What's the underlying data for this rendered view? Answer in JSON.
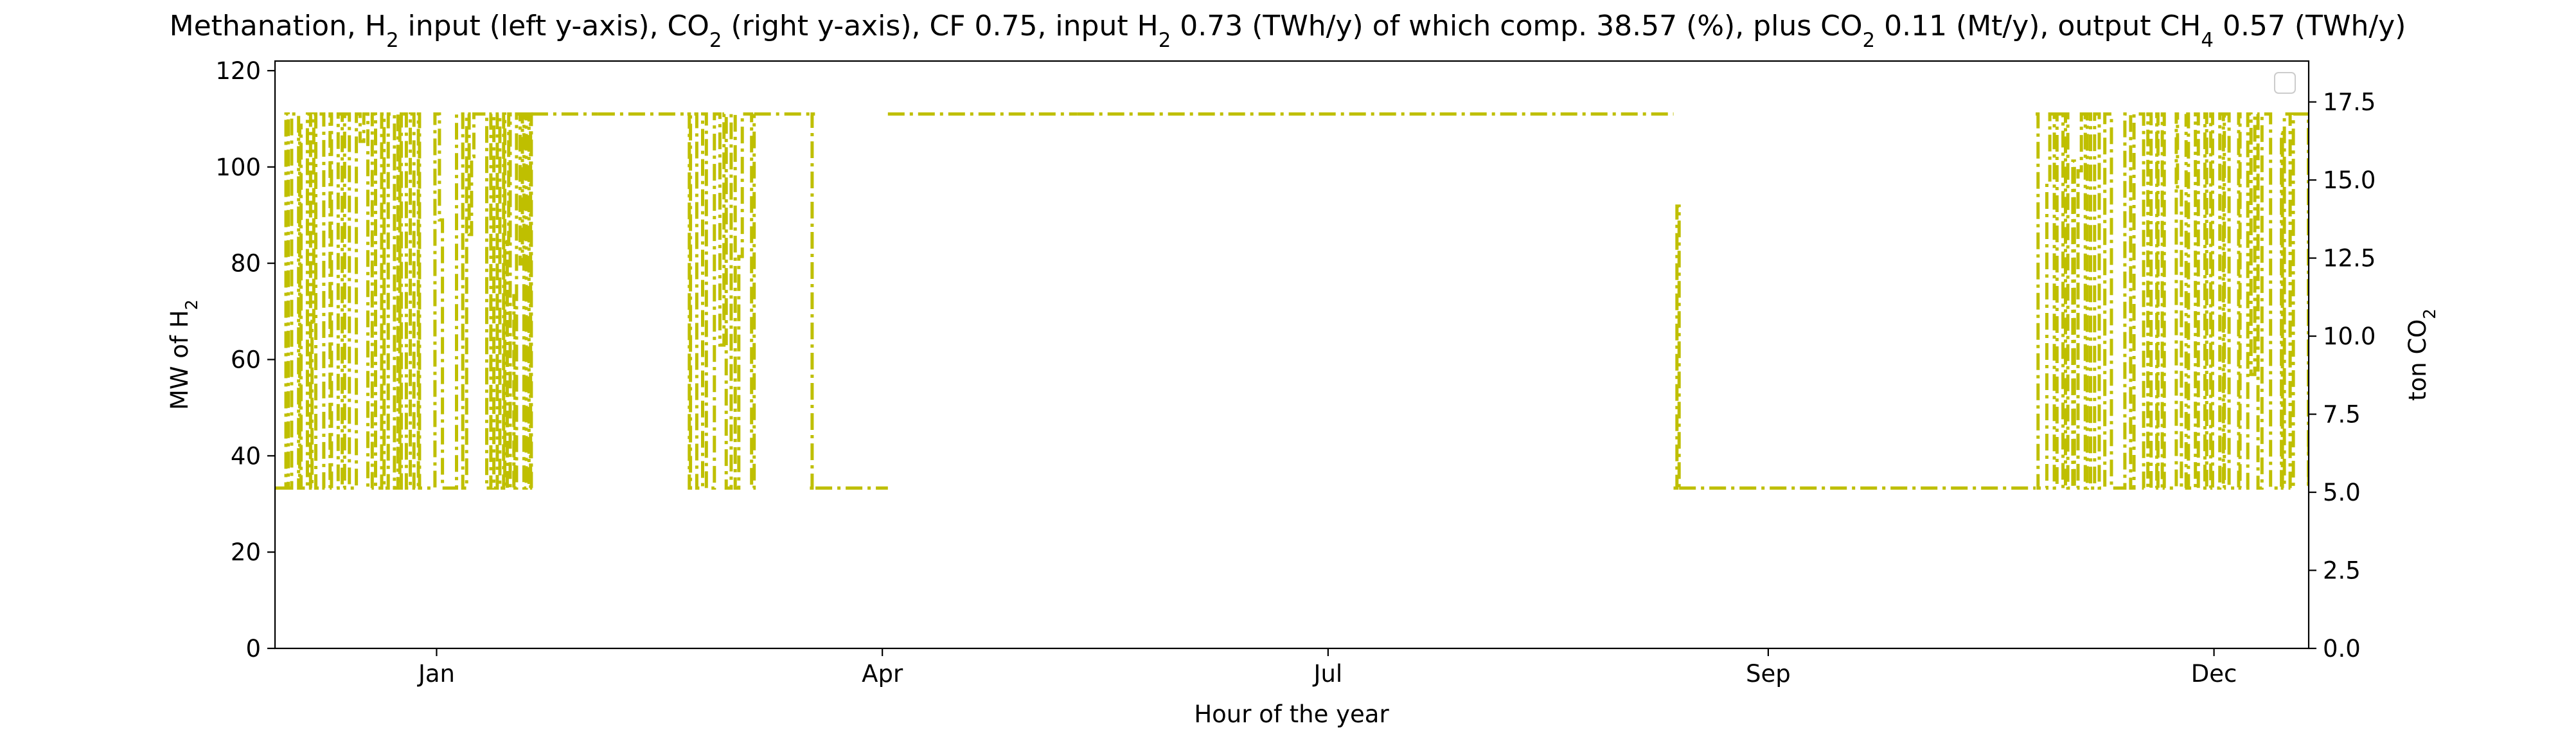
{
  "chart_data": {
    "type": "line",
    "title": {
      "parts": [
        {
          "t": "Methanation, H"
        },
        {
          "t": "2",
          "sub": true
        },
        {
          "t": " input (left y-axis), CO"
        },
        {
          "t": "2",
          "sub": true
        },
        {
          "t": " (right y-axis), CF 0.75, input H"
        },
        {
          "t": "2",
          "sub": true
        },
        {
          "t": " 0.73 (TWh/y) of which comp. 38.57 (%), plus CO"
        },
        {
          "t": "2",
          "sub": true
        },
        {
          "t": " 0.11 (Mt/y), output CH"
        },
        {
          "t": "4",
          "sub": true
        },
        {
          "t": " 0.57 (TWh/y)"
        }
      ]
    },
    "xlabel": "Hour of the year",
    "ylabel_left": {
      "parts": [
        {
          "t": "MW of H"
        },
        {
          "t": "2",
          "sub": true
        }
      ]
    },
    "ylabel_right": {
      "parts": [
        {
          "t": "ton CO"
        },
        {
          "t": "2",
          "sub": true
        }
      ]
    },
    "x_range_days": [
      -12,
      353
    ],
    "x_ticks": [
      {
        "label": "Jan",
        "day": 17
      },
      {
        "label": "Apr",
        "day": 97
      },
      {
        "label": "Jul",
        "day": 177
      },
      {
        "label": "Sep",
        "day": 256
      },
      {
        "label": "Dec",
        "day": 336
      }
    ],
    "ylim_left": [
      0,
      122
    ],
    "yticks_left": [
      0,
      20,
      40,
      60,
      80,
      100,
      120
    ],
    "ylim_right": [
      0,
      18.81
    ],
    "yticks_right": [
      "0.0",
      "2.5",
      "5.0",
      "7.5",
      "10.0",
      "12.5",
      "15.0",
      "17.5"
    ],
    "grid": false,
    "legend": {
      "placement": "top-right",
      "entries": []
    },
    "series": [
      {
        "axis": "left",
        "color": "#bfbf00",
        "linestyle": "dashdot",
        "h2_min_mw": 33.3,
        "h2_max_mw": 111,
        "segments": [
          {
            "from": -12,
            "to": -4,
            "mode": "fluct"
          },
          {
            "from": -4,
            "to": 11,
            "mode": "fluct"
          },
          {
            "from": 11,
            "to": 26,
            "mode": "fluct"
          },
          {
            "from": 26,
            "to": 34,
            "mode": "fluct"
          },
          {
            "from": 34,
            "to": 46,
            "mode": "high"
          },
          {
            "from": 46,
            "to": 62,
            "mode": "high"
          },
          {
            "from": 62,
            "to": 74,
            "mode": "fluct"
          },
          {
            "from": 74,
            "to": 84,
            "mode": "high"
          },
          {
            "from": 84,
            "to": 85,
            "mode": "fluct"
          },
          {
            "from": 85,
            "to": 98,
            "mode": "low"
          },
          {
            "from": 98,
            "to": 132,
            "mode": "high"
          },
          {
            "from": 132,
            "to": 239,
            "mode": "high"
          },
          {
            "from": 239,
            "to": 240,
            "mode": "fluct"
          },
          {
            "from": 240,
            "to": 304,
            "mode": "low"
          },
          {
            "from": 304,
            "to": 331,
            "mode": "fluct"
          },
          {
            "from": 331,
            "to": 353,
            "mode": "fluct"
          }
        ]
      }
    ]
  }
}
